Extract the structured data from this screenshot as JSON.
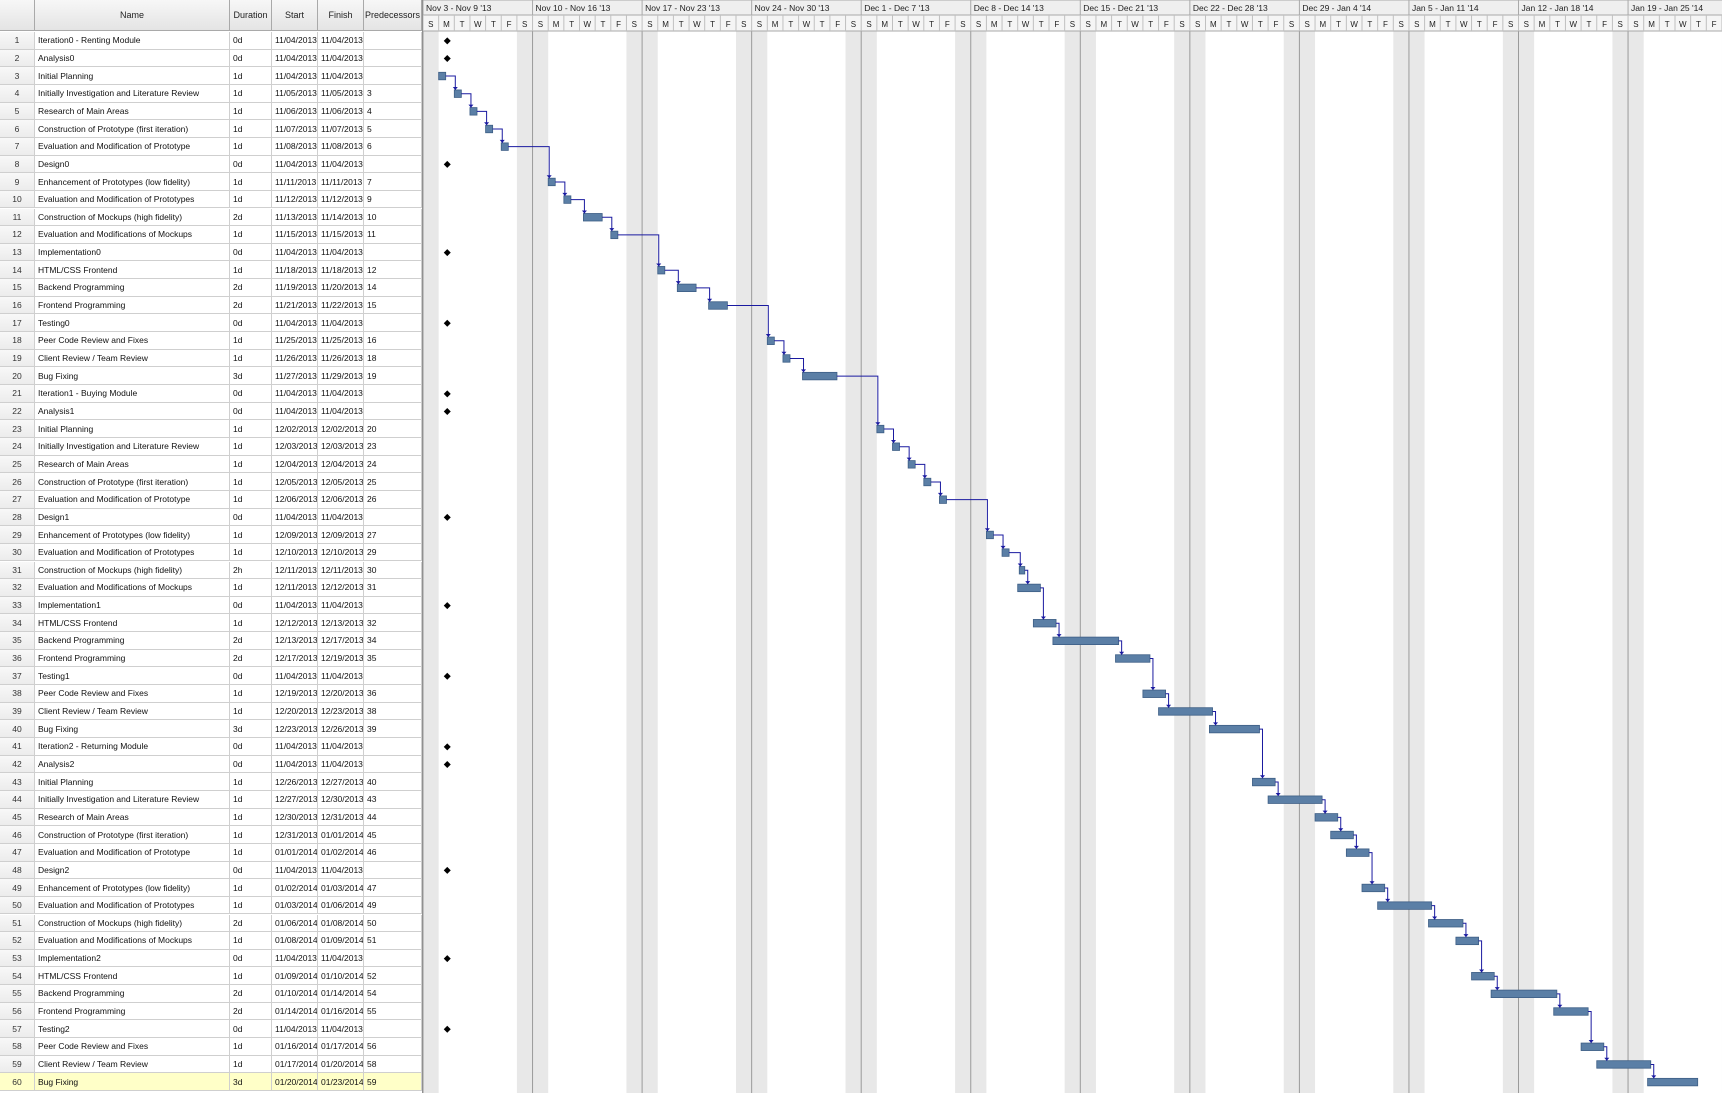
{
  "columns": {
    "id": "",
    "name": "Name",
    "duration": "Duration",
    "start": "Start",
    "finish": "Finish",
    "predecessors": "Predecessors"
  },
  "weeks": [
    "Nov 3 - Nov 9 '13",
    "Nov 10 - Nov 16 '13",
    "Nov 17 - Nov 23 '13",
    "Nov 24 - Nov 30 '13",
    "Dec 1 - Dec 7 '13",
    "Dec 8 - Dec 14 '13",
    "Dec 15 - Dec 21 '13",
    "Dec 22 - Dec 28 '13",
    "Dec 29 - Jan 4 '14",
    "Jan 5 - Jan 11 '14",
    "Jan 12 - Jan 18 '14",
    "Jan 19 - Jan 25 '14"
  ],
  "day_letters": [
    "S",
    "M",
    "T",
    "W",
    "T",
    "F",
    "S"
  ],
  "selected_row": 60,
  "colors": {
    "bar": "#5b7fa6",
    "bar_dark": "#3d5e85",
    "link": "#1a1aa0",
    "milestone": "#000000",
    "weekend": "#e8e8e8",
    "selected": "#ffffc8"
  },
  "tasks": [
    {
      "id": "1",
      "name": "Iteration0 - Renting Module",
      "duration": "0d",
      "start": "11/04/2013",
      "finish": "11/04/2013",
      "pred": ""
    },
    {
      "id": "2",
      "name": "Analysis0",
      "duration": "0d",
      "start": "11/04/2013",
      "finish": "11/04/2013",
      "pred": ""
    },
    {
      "id": "3",
      "name": "Initial Planning",
      "duration": "1d",
      "start": "11/04/2013",
      "finish": "11/04/2013",
      "pred": ""
    },
    {
      "id": "4",
      "name": "Initially Investigation and Literature Review",
      "duration": "1d",
      "start": "11/05/2013",
      "finish": "11/05/2013",
      "pred": "3"
    },
    {
      "id": "5",
      "name": "Research of Main Areas",
      "duration": "1d",
      "start": "11/06/2013",
      "finish": "11/06/2013",
      "pred": "4"
    },
    {
      "id": "6",
      "name": "Construction of Prototype (first iteration)",
      "duration": "1d",
      "start": "11/07/2013",
      "finish": "11/07/2013",
      "pred": "5"
    },
    {
      "id": "7",
      "name": "Evaluation and Modification of Prototype",
      "duration": "1d",
      "start": "11/08/2013",
      "finish": "11/08/2013",
      "pred": "6"
    },
    {
      "id": "8",
      "name": "Design0",
      "duration": "0d",
      "start": "11/04/2013",
      "finish": "11/04/2013",
      "pred": ""
    },
    {
      "id": "9",
      "name": "Enhancement of Prototypes (low fidelity)",
      "duration": "1d",
      "start": "11/11/2013",
      "finish": "11/11/2013",
      "pred": "7"
    },
    {
      "id": "10",
      "name": "Evaluation and Modification of Prototypes",
      "duration": "1d",
      "start": "11/12/2013",
      "finish": "11/12/2013",
      "pred": "9"
    },
    {
      "id": "11",
      "name": "Construction of Mockups (high fidelity)",
      "duration": "2d",
      "start": "11/13/2013",
      "finish": "11/14/2013",
      "pred": "10"
    },
    {
      "id": "12",
      "name": "Evaluation and Modifications of Mockups",
      "duration": "1d",
      "start": "11/15/2013",
      "finish": "11/15/2013",
      "pred": "11"
    },
    {
      "id": "13",
      "name": "Implementation0",
      "duration": "0d",
      "start": "11/04/2013",
      "finish": "11/04/2013",
      "pred": ""
    },
    {
      "id": "14",
      "name": "HTML/CSS Frontend",
      "duration": "1d",
      "start": "11/18/2013",
      "finish": "11/18/2013",
      "pred": "12"
    },
    {
      "id": "15",
      "name": "Backend Programming",
      "duration": "2d",
      "start": "11/19/2013",
      "finish": "11/20/2013",
      "pred": "14"
    },
    {
      "id": "16",
      "name": "Frontend Programming",
      "duration": "2d",
      "start": "11/21/2013",
      "finish": "11/22/2013",
      "pred": "15"
    },
    {
      "id": "17",
      "name": "Testing0",
      "duration": "0d",
      "start": "11/04/2013",
      "finish": "11/04/2013",
      "pred": ""
    },
    {
      "id": "18",
      "name": "Peer Code Review and Fixes",
      "duration": "1d",
      "start": "11/25/2013",
      "finish": "11/25/2013",
      "pred": "16"
    },
    {
      "id": "19",
      "name": "Client Review / Team Review",
      "duration": "1d",
      "start": "11/26/2013",
      "finish": "11/26/2013",
      "pred": "18"
    },
    {
      "id": "20",
      "name": "Bug Fixing",
      "duration": "3d",
      "start": "11/27/2013",
      "finish": "11/29/2013",
      "pred": "19"
    },
    {
      "id": "21",
      "name": "Iteration1 - Buying Module",
      "duration": "0d",
      "start": "11/04/2013",
      "finish": "11/04/2013",
      "pred": ""
    },
    {
      "id": "22",
      "name": "Analysis1",
      "duration": "0d",
      "start": "11/04/2013",
      "finish": "11/04/2013",
      "pred": ""
    },
    {
      "id": "23",
      "name": "Initial Planning",
      "duration": "1d",
      "start": "12/02/2013",
      "finish": "12/02/2013",
      "pred": "20"
    },
    {
      "id": "24",
      "name": "Initially Investigation and Literature Review",
      "duration": "1d",
      "start": "12/03/2013",
      "finish": "12/03/2013",
      "pred": "23"
    },
    {
      "id": "25",
      "name": "Research of Main Areas",
      "duration": "1d",
      "start": "12/04/2013",
      "finish": "12/04/2013",
      "pred": "24"
    },
    {
      "id": "26",
      "name": "Construction of Prototype (first iteration)",
      "duration": "1d",
      "start": "12/05/2013",
      "finish": "12/05/2013",
      "pred": "25"
    },
    {
      "id": "27",
      "name": "Evaluation and Modification of Prototype",
      "duration": "1d",
      "start": "12/06/2013",
      "finish": "12/06/2013",
      "pred": "26"
    },
    {
      "id": "28",
      "name": "Design1",
      "duration": "0d",
      "start": "11/04/2013",
      "finish": "11/04/2013",
      "pred": ""
    },
    {
      "id": "29",
      "name": "Enhancement of Prototypes (low fidelity)",
      "duration": "1d",
      "start": "12/09/2013",
      "finish": "12/09/2013",
      "pred": "27"
    },
    {
      "id": "30",
      "name": "Evaluation and Modification of Prototypes",
      "duration": "1d",
      "start": "12/10/2013",
      "finish": "12/10/2013",
      "pred": "29"
    },
    {
      "id": "31",
      "name": "Construction of Mockups (high fidelity)",
      "duration": "2h",
      "start": "12/11/2013",
      "finish": "12/11/2013",
      "pred": "30"
    },
    {
      "id": "32",
      "name": "Evaluation and Modifications of Mockups",
      "duration": "1d",
      "start": "12/11/2013",
      "finish": "12/12/2013",
      "pred": "31"
    },
    {
      "id": "33",
      "name": "Implementation1",
      "duration": "0d",
      "start": "11/04/2013",
      "finish": "11/04/2013",
      "pred": ""
    },
    {
      "id": "34",
      "name": "HTML/CSS Frontend",
      "duration": "1d",
      "start": "12/12/2013",
      "finish": "12/13/2013",
      "pred": "32"
    },
    {
      "id": "35",
      "name": "Backend Programming",
      "duration": "2d",
      "start": "12/13/2013",
      "finish": "12/17/2013",
      "pred": "34"
    },
    {
      "id": "36",
      "name": "Frontend Programming",
      "duration": "2d",
      "start": "12/17/2013",
      "finish": "12/19/2013",
      "pred": "35"
    },
    {
      "id": "37",
      "name": "Testing1",
      "duration": "0d",
      "start": "11/04/2013",
      "finish": "11/04/2013",
      "pred": ""
    },
    {
      "id": "38",
      "name": "Peer Code Review and Fixes",
      "duration": "1d",
      "start": "12/19/2013",
      "finish": "12/20/2013",
      "pred": "36"
    },
    {
      "id": "39",
      "name": "Client Review / Team Review",
      "duration": "1d",
      "start": "12/20/2013",
      "finish": "12/23/2013",
      "pred": "38"
    },
    {
      "id": "40",
      "name": "Bug Fixing",
      "duration": "3d",
      "start": "12/23/2013",
      "finish": "12/26/2013",
      "pred": "39"
    },
    {
      "id": "41",
      "name": "Iteration2 - Returning Module",
      "duration": "0d",
      "start": "11/04/2013",
      "finish": "11/04/2013",
      "pred": ""
    },
    {
      "id": "42",
      "name": "Analysis2",
      "duration": "0d",
      "start": "11/04/2013",
      "finish": "11/04/2013",
      "pred": ""
    },
    {
      "id": "43",
      "name": "Initial Planning",
      "duration": "1d",
      "start": "12/26/2013",
      "finish": "12/27/2013",
      "pred": "40"
    },
    {
      "id": "44",
      "name": "Initially Investigation and Literature Review",
      "duration": "1d",
      "start": "12/27/2013",
      "finish": "12/30/2013",
      "pred": "43"
    },
    {
      "id": "45",
      "name": "Research of Main Areas",
      "duration": "1d",
      "start": "12/30/2013",
      "finish": "12/31/2013",
      "pred": "44"
    },
    {
      "id": "46",
      "name": "Construction of Prototype (first iteration)",
      "duration": "1d",
      "start": "12/31/2013",
      "finish": "01/01/2014",
      "pred": "45"
    },
    {
      "id": "47",
      "name": "Evaluation and Modification of Prototype",
      "duration": "1d",
      "start": "01/01/2014",
      "finish": "01/02/2014",
      "pred": "46"
    },
    {
      "id": "48",
      "name": "Design2",
      "duration": "0d",
      "start": "11/04/2013",
      "finish": "11/04/2013",
      "pred": ""
    },
    {
      "id": "49",
      "name": "Enhancement of Prototypes (low fidelity)",
      "duration": "1d",
      "start": "01/02/2014",
      "finish": "01/03/2014",
      "pred": "47"
    },
    {
      "id": "50",
      "name": "Evaluation and Modification of Prototypes",
      "duration": "1d",
      "start": "01/03/2014",
      "finish": "01/06/2014",
      "pred": "49"
    },
    {
      "id": "51",
      "name": "Construction of Mockups (high fidelity)",
      "duration": "2d",
      "start": "01/06/2014",
      "finish": "01/08/2014",
      "pred": "50"
    },
    {
      "id": "52",
      "name": "Evaluation and Modifications of Mockups",
      "duration": "1d",
      "start": "01/08/2014",
      "finish": "01/09/2014",
      "pred": "51"
    },
    {
      "id": "53",
      "name": "Implementation2",
      "duration": "0d",
      "start": "11/04/2013",
      "finish": "11/04/2013",
      "pred": ""
    },
    {
      "id": "54",
      "name": "HTML/CSS Frontend",
      "duration": "1d",
      "start": "01/09/2014",
      "finish": "01/10/2014",
      "pred": "52"
    },
    {
      "id": "55",
      "name": "Backend Programming",
      "duration": "2d",
      "start": "01/10/2014",
      "finish": "01/14/2014",
      "pred": "54"
    },
    {
      "id": "56",
      "name": "Frontend Programming",
      "duration": "2d",
      "start": "01/14/2014",
      "finish": "01/16/2014",
      "pred": "55"
    },
    {
      "id": "57",
      "name": "Testing2",
      "duration": "0d",
      "start": "11/04/2013",
      "finish": "11/04/2013",
      "pred": ""
    },
    {
      "id": "58",
      "name": "Peer Code Review and Fixes",
      "duration": "1d",
      "start": "01/16/2014",
      "finish": "01/17/2014",
      "pred": "56"
    },
    {
      "id": "59",
      "name": "Client Review / Team Review",
      "duration": "1d",
      "start": "01/17/2014",
      "finish": "01/20/2014",
      "pred": "58"
    },
    {
      "id": "60",
      "name": "Bug Fixing",
      "duration": "3d",
      "start": "01/20/2014",
      "finish": "01/23/2014",
      "pred": "59"
    }
  ]
}
